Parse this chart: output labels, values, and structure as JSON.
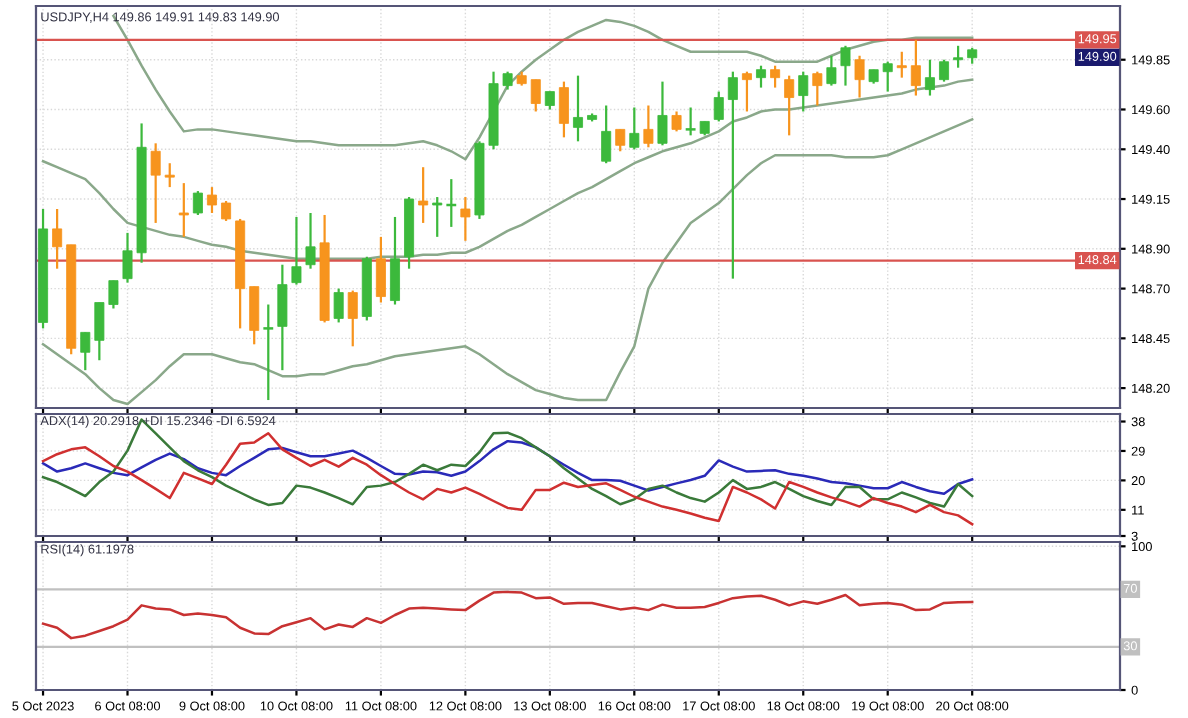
{
  "chart_data": [
    {
      "type": "candlestick",
      "title": "USDJPY,H4 149.86 149.91 149.83 149.90",
      "tick_labels": "y",
      "grid": true,
      "categories": [
        null,
        null,
        null,
        null,
        null,
        null,
        null,
        null,
        null,
        null,
        null,
        null,
        null,
        null,
        null,
        null,
        null,
        null,
        null,
        null,
        null,
        null,
        null,
        null,
        null,
        null,
        null,
        null,
        null,
        null,
        null,
        null,
        null,
        null,
        null,
        null,
        null,
        null,
        null,
        null,
        null,
        null,
        null,
        null,
        null,
        null,
        null,
        null,
        null,
        null,
        null,
        null,
        null,
        null,
        null,
        null,
        null,
        null,
        null,
        null,
        null,
        null,
        null,
        null,
        null,
        null,
        null
      ],
      "ohlc": [
        [
          148.53,
          149.1,
          148.5,
          149.0
        ],
        [
          149.0,
          149.1,
          148.8,
          148.91
        ],
        [
          148.92,
          148.92,
          148.37,
          148.4
        ],
        [
          148.38,
          148.48,
          148.29,
          148.48
        ],
        [
          148.44,
          148.63,
          148.34,
          148.63
        ],
        [
          148.62,
          148.74,
          148.6,
          148.74
        ],
        [
          148.75,
          148.98,
          148.73,
          148.89
        ],
        [
          148.88,
          149.53,
          148.83,
          149.41
        ],
        [
          149.39,
          149.43,
          149.03,
          149.27
        ],
        [
          149.27,
          149.33,
          149.21,
          149.26
        ],
        [
          149.08,
          149.23,
          148.96,
          149.07
        ],
        [
          149.08,
          149.19,
          149.07,
          149.18
        ],
        [
          149.17,
          149.21,
          149.08,
          149.12
        ],
        [
          149.13,
          149.14,
          149.04,
          149.05
        ],
        [
          149.04,
          149.05,
          148.5,
          148.7
        ],
        [
          148.71,
          148.71,
          148.42,
          148.49
        ],
        [
          148.5,
          148.62,
          148.14,
          148.5
        ],
        [
          148.51,
          148.82,
          148.29,
          148.72
        ],
        [
          148.73,
          149.06,
          148.72,
          148.81
        ],
        [
          148.82,
          149.08,
          148.8,
          148.91
        ],
        [
          148.93,
          149.07,
          148.53,
          148.54
        ],
        [
          148.55,
          148.7,
          148.53,
          148.68
        ],
        [
          148.68,
          148.69,
          148.41,
          148.55
        ],
        [
          148.56,
          148.86,
          148.54,
          148.85
        ],
        [
          148.85,
          148.96,
          148.63,
          148.66
        ],
        [
          148.64,
          149.06,
          148.62,
          148.85
        ],
        [
          148.86,
          149.16,
          148.8,
          149.15
        ],
        [
          149.14,
          149.31,
          149.03,
          149.12
        ],
        [
          149.12,
          149.16,
          148.96,
          149.13
        ],
        [
          149.12,
          149.25,
          149.01,
          149.12
        ],
        [
          149.1,
          149.16,
          148.94,
          149.06
        ],
        [
          149.07,
          149.44,
          149.05,
          149.43
        ],
        [
          149.42,
          149.79,
          149.4,
          149.73
        ],
        [
          149.72,
          149.79,
          149.7,
          149.78
        ],
        [
          149.77,
          149.79,
          149.72,
          149.73
        ],
        [
          149.75,
          149.75,
          149.59,
          149.63
        ],
        [
          149.62,
          149.69,
          149.6,
          149.69
        ],
        [
          149.71,
          149.74,
          149.46,
          149.53
        ],
        [
          149.51,
          149.77,
          149.44,
          149.56
        ],
        [
          149.55,
          149.58,
          149.54,
          149.57
        ],
        [
          149.34,
          149.62,
          149.33,
          149.49
        ],
        [
          149.5,
          149.5,
          149.39,
          149.42
        ],
        [
          149.41,
          149.61,
          149.4,
          149.48
        ],
        [
          149.5,
          149.62,
          149.41,
          149.43
        ],
        [
          149.43,
          149.74,
          149.42,
          149.57
        ],
        [
          149.57,
          149.59,
          149.49,
          149.5
        ],
        [
          149.5,
          149.61,
          149.47,
          149.5
        ],
        [
          149.48,
          149.54,
          149.47,
          149.54
        ],
        [
          149.55,
          149.69,
          149.54,
          149.66
        ],
        [
          149.65,
          149.79,
          148.75,
          149.76
        ],
        [
          149.78,
          149.79,
          149.59,
          149.75
        ],
        [
          149.76,
          149.82,
          149.71,
          149.8
        ],
        [
          149.8,
          149.82,
          149.71,
          149.76
        ],
        [
          149.75,
          149.77,
          149.47,
          149.66
        ],
        [
          149.67,
          149.79,
          149.59,
          149.77
        ],
        [
          149.78,
          149.79,
          149.62,
          149.72
        ],
        [
          149.73,
          149.87,
          149.72,
          149.81
        ],
        [
          149.82,
          149.92,
          149.72,
          149.91
        ],
        [
          149.85,
          149.87,
          149.66,
          149.75
        ],
        [
          149.74,
          149.8,
          149.73,
          149.8
        ],
        [
          149.79,
          149.84,
          149.69,
          149.83
        ],
        [
          149.82,
          149.89,
          149.76,
          149.81
        ],
        [
          149.82,
          149.95,
          149.67,
          149.72
        ],
        [
          149.7,
          149.85,
          149.67,
          149.76
        ],
        [
          149.75,
          149.85,
          149.74,
          149.84
        ],
        [
          149.85,
          149.92,
          149.81,
          149.86
        ],
        [
          149.86,
          149.91,
          149.83,
          149.9
        ]
      ],
      "colors": [
        "#3cb93c",
        "#f7941d",
        "#f7941d",
        "#3cb93c",
        "#3cb93c",
        "#3cb93c",
        "#3cb93c",
        "#3cb93c",
        "#f7941d",
        "#f7941d",
        "#f7941d",
        "#3cb93c",
        "#f7941d",
        "#f7941d",
        "#f7941d",
        "#f7941d",
        "#3cb93c",
        "#3cb93c",
        "#3cb93c",
        "#3cb93c",
        "#f7941d",
        "#3cb93c",
        "#f7941d",
        "#3cb93c",
        "#f7941d",
        "#3cb93c",
        "#3cb93c",
        "#f7941d",
        "#3cb93c",
        "#3cb93c",
        "#f7941d",
        "#3cb93c",
        "#3cb93c",
        "#3cb93c",
        "#f7941d",
        "#f7941d",
        "#3cb93c",
        "#f7941d",
        "#3cb93c",
        "#3cb93c",
        "#3cb93c",
        "#f7941d",
        "#3cb93c",
        "#f7941d",
        "#3cb93c",
        "#f7941d",
        "#3cb93c",
        "#3cb93c",
        "#3cb93c",
        "#3cb93c",
        "#f7941d",
        "#3cb93c",
        "#f7941d",
        "#f7941d",
        "#3cb93c",
        "#f7941d",
        "#3cb93c",
        "#3cb93c",
        "#f7941d",
        "#3cb93c",
        "#3cb93c",
        "#f7941d",
        "#f7941d",
        "#3cb93c",
        "#3cb93c",
        "#3cb93c",
        "#3cb93c"
      ],
      "series": [
        {
          "type": "line",
          "color": "#8aa88a",
          "values": [
            null,
            null,
            null,
            null,
            null,
            150.07,
            149.95,
            149.82,
            149.7,
            149.59,
            149.49,
            149.5,
            149.5,
            149.49,
            149.48,
            149.47,
            149.46,
            149.45,
            149.44,
            149.44,
            149.43,
            149.42,
            149.42,
            149.42,
            149.42,
            149.42,
            149.43,
            149.44,
            149.42,
            149.39,
            149.35,
            149.46,
            149.59,
            149.72,
            149.79,
            149.85,
            149.9,
            149.95,
            149.99,
            150.02,
            150.05,
            150.04,
            150.02,
            149.99,
            149.95,
            149.92,
            149.89,
            149.89,
            149.89,
            149.89,
            149.89,
            149.87,
            149.84,
            149.84,
            149.84,
            149.84,
            149.87,
            149.9,
            149.92,
            149.94,
            149.95,
            149.95,
            149.96,
            149.96,
            149.96,
            149.96,
            149.96
          ]
        },
        {
          "type": "line",
          "color": "#8aa88a",
          "values": [
            149.34,
            149.31,
            149.28,
            149.25,
            149.18,
            149.1,
            149.03,
            149.01,
            148.99,
            148.97,
            148.96,
            148.94,
            148.92,
            148.91,
            148.89,
            148.88,
            148.87,
            148.86,
            148.85,
            148.85,
            148.85,
            148.85,
            148.85,
            148.85,
            148.86,
            148.86,
            148.86,
            148.87,
            148.87,
            148.88,
            148.88,
            148.91,
            148.95,
            148.99,
            149.02,
            149.06,
            149.1,
            149.14,
            149.18,
            149.21,
            149.25,
            149.29,
            149.33,
            149.36,
            149.39,
            149.41,
            149.43,
            149.46,
            149.49,
            149.54,
            149.56,
            149.59,
            149.6,
            149.6,
            149.61,
            149.62,
            149.63,
            149.64,
            149.65,
            149.66,
            149.67,
            149.68,
            149.7,
            149.71,
            149.72,
            149.74,
            149.75
          ]
        },
        {
          "type": "line",
          "color": "#8aa88a",
          "values": [
            148.42,
            148.37,
            148.32,
            148.27,
            148.2,
            148.14,
            148.12,
            148.18,
            148.24,
            148.31,
            148.37,
            148.37,
            148.37,
            148.35,
            148.33,
            148.32,
            148.29,
            148.26,
            148.26,
            148.27,
            148.27,
            148.29,
            148.31,
            148.32,
            148.34,
            148.36,
            148.37,
            148.38,
            148.39,
            148.4,
            148.41,
            148.37,
            148.32,
            148.27,
            148.23,
            148.19,
            148.17,
            148.15,
            148.14,
            148.14,
            148.14,
            148.28,
            148.41,
            148.7,
            148.83,
            148.93,
            149.03,
            149.08,
            149.13,
            149.2,
            149.27,
            149.33,
            149.37,
            149.37,
            149.37,
            149.37,
            149.37,
            149.36,
            149.36,
            149.36,
            149.37,
            149.4,
            149.43,
            149.46,
            149.49,
            149.52,
            149.55
          ]
        }
      ],
      "ylim": [
        148.1,
        150.12
      ],
      "yticks": [
        149.85,
        {
          "value": 149.6,
          "label": "149.60"
        },
        {
          "value": 149.4,
          "label": "149.40"
        },
        149.15,
        {
          "value": 148.9,
          "label": "148.90"
        },
        {
          "value": 148.7,
          "label": "148.70"
        },
        148.45,
        {
          "value": 148.2,
          "label": "148.20"
        }
      ],
      "ref_lines": [
        {
          "axis": "y",
          "value": 149.95,
          "label": "149.95",
          "color": "#d9534f"
        },
        {
          "axis": "y",
          "value": 148.84,
          "label": "148.84",
          "color": "#d9534f"
        }
      ],
      "annotations": [
        "149.90"
      ]
    },
    {
      "type": "line",
      "title": "ADX(14) 20.2918 +DI 15.2346 -DI 6.5924",
      "tick_labels": "y",
      "grid": true,
      "categories": [
        null,
        null,
        null,
        null,
        null,
        null,
        null,
        null,
        null,
        null,
        null,
        null,
        null,
        null,
        null,
        null,
        null,
        null,
        null,
        null,
        null,
        null,
        null,
        null,
        null,
        null,
        null,
        null,
        null,
        null,
        null,
        null,
        null,
        null,
        null,
        null,
        null,
        null,
        null,
        null,
        null,
        null,
        null,
        null,
        null,
        null,
        null,
        null,
        null,
        null,
        null,
        null,
        null,
        null,
        null,
        null,
        null,
        null,
        null,
        null,
        null,
        null,
        null,
        null,
        null,
        null,
        null
      ],
      "series": [
        {
          "color": "#2a2ab8",
          "values": [
            25.2,
            22.7,
            23.7,
            25.2,
            23.7,
            22.3,
            21.6,
            24.0,
            26.3,
            28.2,
            26.5,
            23.7,
            22.3,
            21.6,
            24.4,
            26.9,
            29.5,
            29.9,
            28.6,
            27.4,
            27.4,
            28.2,
            29.1,
            26.9,
            24.4,
            22.0,
            21.8,
            22.7,
            22.5,
            21.4,
            22.7,
            25.9,
            29.5,
            32.0,
            31.6,
            30.1,
            27.4,
            24.8,
            22.3,
            20.1,
            20.1,
            19.9,
            18.4,
            16.9,
            18.0,
            19.1,
            20.1,
            21.4,
            26.1,
            24.2,
            22.7,
            22.9,
            23.1,
            22.0,
            21.4,
            20.6,
            19.5,
            19.1,
            18.4,
            17.6,
            17.6,
            19.5,
            18.0,
            16.7,
            15.9,
            18.9,
            20.3
          ]
        },
        {
          "color": "#3a7a3a",
          "values": [
            21.0,
            19.5,
            17.4,
            15.2,
            19.5,
            22.7,
            29.1,
            38.6,
            34.4,
            30.1,
            25.9,
            23.1,
            21.0,
            18.4,
            16.3,
            14.2,
            12.5,
            13.1,
            18.4,
            17.8,
            16.3,
            14.6,
            12.7,
            18.0,
            18.4,
            19.5,
            22.0,
            24.8,
            23.1,
            24.8,
            24.4,
            28.6,
            34.4,
            34.6,
            32.9,
            30.1,
            27.4,
            23.7,
            20.6,
            17.4,
            15.2,
            12.7,
            14.2,
            17.4,
            18.4,
            16.3,
            14.6,
            13.5,
            16.3,
            20.1,
            17.4,
            18.0,
            19.5,
            17.4,
            15.2,
            13.7,
            12.5,
            18.0,
            18.0,
            14.2,
            14.2,
            16.3,
            14.8,
            13.1,
            12.0,
            18.9,
            15.2
          ]
        },
        {
          "color": "#d03030",
          "values": [
            25.9,
            28.0,
            29.5,
            30.1,
            27.4,
            24.4,
            22.7,
            20.1,
            17.4,
            14.6,
            22.3,
            20.6,
            18.9,
            24.8,
            31.2,
            31.6,
            34.4,
            29.5,
            26.9,
            24.4,
            26.3,
            24.2,
            26.9,
            24.8,
            21.6,
            18.9,
            16.3,
            14.2,
            17.4,
            16.3,
            17.8,
            15.9,
            13.7,
            11.6,
            11.0,
            17.1,
            17.1,
            19.3,
            18.0,
            18.6,
            19.1,
            17.1,
            15.0,
            13.5,
            12.0,
            11.0,
            9.9,
            8.6,
            7.6,
            18.0,
            16.3,
            14.2,
            11.4,
            19.5,
            18.0,
            16.3,
            14.8,
            13.5,
            12.0,
            14.6,
            13.1,
            12.0,
            10.3,
            12.5,
            10.3,
            9.3,
            6.6
          ]
        }
      ],
      "ylim": [
        3,
        40.3
      ],
      "yticks": [
        38,
        29,
        20,
        11,
        3
      ]
    },
    {
      "type": "line",
      "title": "RSI(14) 61.1978",
      "grid": true,
      "categories": [
        "5 Oct 2023",
        null,
        null,
        null,
        null,
        null,
        "6 Oct 08:00",
        null,
        null,
        null,
        null,
        null,
        "9 Oct 08:00",
        null,
        null,
        null,
        null,
        null,
        "10 Oct 08:00",
        null,
        null,
        null,
        null,
        null,
        "11 Oct 08:00",
        null,
        null,
        null,
        null,
        null,
        "12 Oct 08:00",
        null,
        null,
        null,
        null,
        null,
        "13 Oct 08:00",
        null,
        null,
        null,
        null,
        null,
        "16 Oct 08:00",
        null,
        null,
        null,
        null,
        null,
        "17 Oct 08:00",
        null,
        null,
        null,
        null,
        null,
        "18 Oct 08:00",
        null,
        null,
        null,
        null,
        null,
        "19 Oct 08:00",
        null,
        null,
        null,
        null,
        null,
        "20 Oct 08:00"
      ],
      "series": [
        {
          "color": "#c83232",
          "values": [
            46.1,
            43.3,
            36.1,
            37.8,
            41.1,
            44.4,
            48.9,
            58.9,
            56.7,
            56.1,
            52.2,
            53.3,
            52.2,
            50.6,
            43.3,
            39.4,
            38.9,
            44.4,
            47.2,
            50.0,
            42.2,
            45.6,
            43.9,
            50.0,
            46.7,
            52.2,
            56.7,
            57.2,
            56.7,
            56.1,
            55.6,
            62.2,
            67.8,
            68.3,
            67.8,
            63.9,
            64.4,
            60.0,
            60.6,
            60.6,
            58.3,
            56.1,
            57.2,
            55.6,
            59.4,
            57.2,
            57.2,
            57.8,
            60.6,
            63.9,
            65.0,
            65.6,
            62.8,
            58.9,
            61.7,
            60.0,
            62.8,
            66.1,
            58.9,
            60.0,
            60.6,
            59.4,
            55.6,
            56.1,
            60.6,
            61.1,
            61.2
          ]
        }
      ],
      "ylim": [
        0,
        103
      ],
      "yticks": [
        100,
        0
      ],
      "ref_lines": [
        {
          "axis": "y",
          "value": 70,
          "label": "70",
          "color": "#c0c0c0"
        },
        {
          "axis": "y",
          "value": 30,
          "label": "30",
          "color": "#c0c0c0"
        }
      ]
    }
  ]
}
